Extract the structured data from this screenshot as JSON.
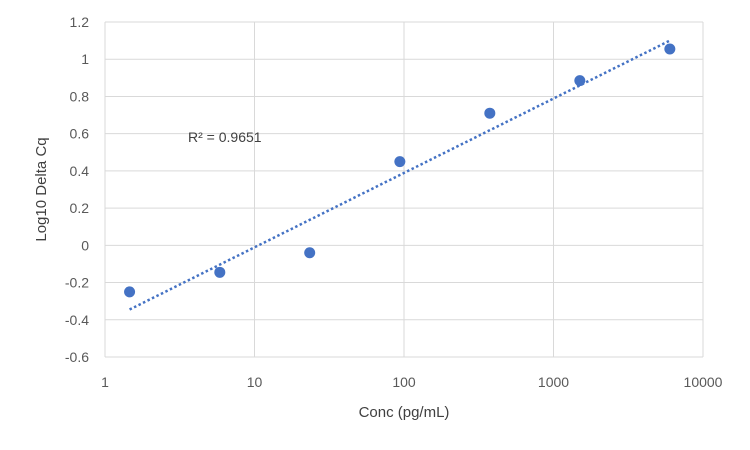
{
  "chart_data": {
    "type": "scatter",
    "title": "",
    "xlabel": "Conc (pg/mL)",
    "ylabel": "Log10 Delta Cq",
    "x_scale": "log",
    "xlim": [
      1,
      10000
    ],
    "ylim": [
      -0.6,
      1.2
    ],
    "x_ticks": [
      1,
      10,
      100,
      1000,
      10000
    ],
    "x_tick_labels": [
      "1",
      "10",
      "100",
      "1000",
      "10000"
    ],
    "y_ticks": [
      -0.6,
      -0.4,
      -0.2,
      0,
      0.2,
      0.4,
      0.6,
      0.8,
      1.0,
      1.2
    ],
    "y_tick_labels": [
      "-0.6",
      "-0.4",
      "-0.2",
      "0",
      "0.2",
      "0.4",
      "0.6",
      "0.8",
      "1",
      "1.2"
    ],
    "grid": true,
    "series": [
      {
        "x": [
          1.46,
          5.86,
          23.4,
          93.8,
          375,
          1500,
          6000
        ],
        "y": [
          -0.25,
          -0.145,
          -0.04,
          0.45,
          0.71,
          0.885,
          1.055
        ],
        "color": "#4472C4"
      }
    ],
    "trendline": {
      "type": "log-linear",
      "x_range": [
        1.46,
        6000
      ],
      "y_range": [
        -0.345,
        1.1
      ],
      "color": "#4472C4",
      "style": "dotted"
    },
    "annotation": {
      "text": "R² = 0.9651"
    }
  }
}
